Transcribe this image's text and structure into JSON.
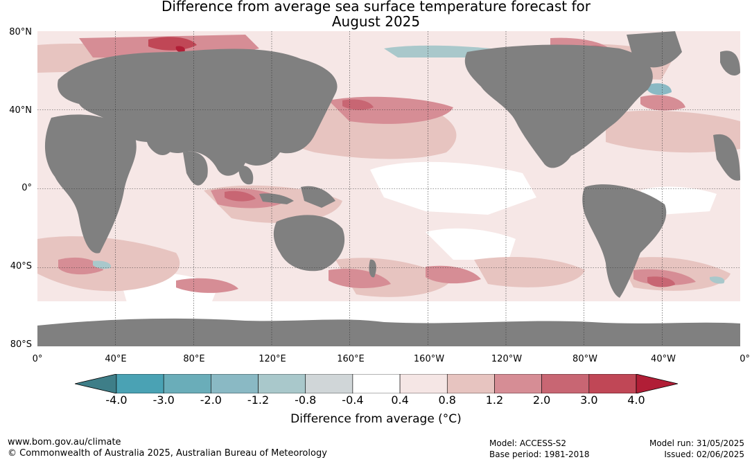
{
  "title_line1": "Difference from average sea surface temperature forecast for",
  "title_line2": "August 2025",
  "lat_labels": [
    "80°N",
    "40°N",
    "0°",
    "40°S",
    "80°S"
  ],
  "lon_labels": [
    "0°",
    "40°E",
    "80°E",
    "120°E",
    "160°E",
    "160°W",
    "120°W",
    "80°W",
    "40°W",
    "0°"
  ],
  "colorbar": {
    "ticks": [
      "-4.0",
      "-3.0",
      "-2.0",
      "-1.2",
      "-0.8",
      "-0.4",
      "0.4",
      "0.8",
      "1.2",
      "2.0",
      "3.0",
      "4.0"
    ],
    "colors": [
      "#4aa2b4",
      "#6aadb9",
      "#8ab9c4",
      "#a9c8cb",
      "#d0d6d8",
      "#ffffff",
      "#f5e6e5",
      "#e7c4c0",
      "#d68d95",
      "#c86673",
      "#c04756"
    ],
    "under_color": "#3e7e88",
    "over_color": "#b11e36",
    "label": "Difference from average ($^\\circ$C)",
    "label_display": "Difference from average (°C)"
  },
  "land_color": "#808080",
  "footer": {
    "website": "www.bom.gov.au/climate",
    "copyright": "© Commonwealth of Australia 2025, Australian Bureau of Meteorology",
    "model": "Model: ACCESS-S2",
    "base_period": "Base period: 1981-2018",
    "model_run": "Model run: 31/05/2025",
    "issued": "Issued: 02/06/2025"
  }
}
